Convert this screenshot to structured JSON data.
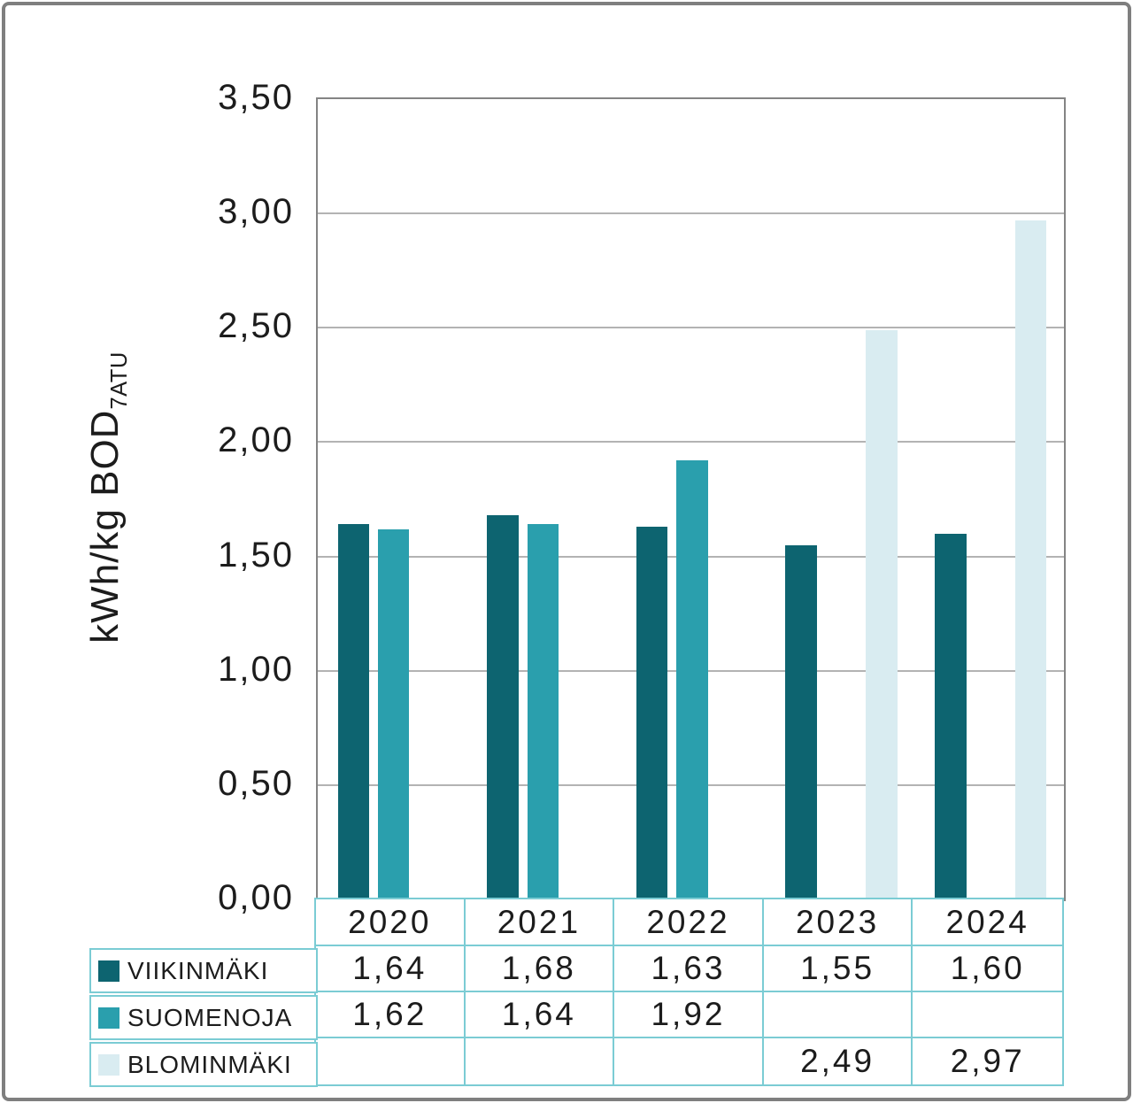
{
  "chart_data": {
    "type": "bar",
    "title": "",
    "ylabel": "kWh/kg BOD",
    "ylabel_sub": "7ATU",
    "xlabel": "",
    "categories": [
      "2020",
      "2021",
      "2022",
      "2023",
      "2024"
    ],
    "series": [
      {
        "name": "VIIKINMÄKI",
        "color": "#0d6470",
        "values": [
          1.64,
          1.68,
          1.63,
          1.55,
          1.6
        ]
      },
      {
        "name": "SUOMENOJA",
        "color": "#2a9fad",
        "values": [
          1.62,
          1.64,
          1.92,
          null,
          null
        ]
      },
      {
        "name": "BLOMINMÄKI",
        "color": "#d9ecf1",
        "values": [
          null,
          null,
          null,
          2.49,
          2.97
        ]
      }
    ],
    "ylim": [
      0,
      3.5
    ],
    "ytick_step": 0.5,
    "ytick_labels": [
      "0,00",
      "0,50",
      "1,00",
      "1,50",
      "2,00",
      "2,50",
      "3,00",
      "3,50"
    ],
    "grid": true,
    "legend_position": "table-left"
  },
  "table": {
    "year_headers": [
      "2020",
      "2021",
      "2022",
      "2023",
      "2024"
    ],
    "rows": [
      {
        "label": "VIIKINMÄKI",
        "values": [
          "1,64",
          "1,68",
          "1,63",
          "1,55",
          "1,60"
        ]
      },
      {
        "label": "SUOMENOJA",
        "values": [
          "1,62",
          "1,64",
          "1,92",
          "",
          ""
        ]
      },
      {
        "label": "BLOMINMÄKI",
        "values": [
          "",
          "",
          "",
          "2,49",
          "2,97"
        ]
      }
    ]
  },
  "colors": {
    "viikinmaki": "#0d6470",
    "suomenoja": "#2a9fad",
    "blominmaki": "#d9ecf1",
    "table_border": "#7bccd4",
    "gridline": "#b3b3b3",
    "plot_border": "#848484",
    "outer_border": "#7f7f7f",
    "text": "#1c1c1c"
  }
}
